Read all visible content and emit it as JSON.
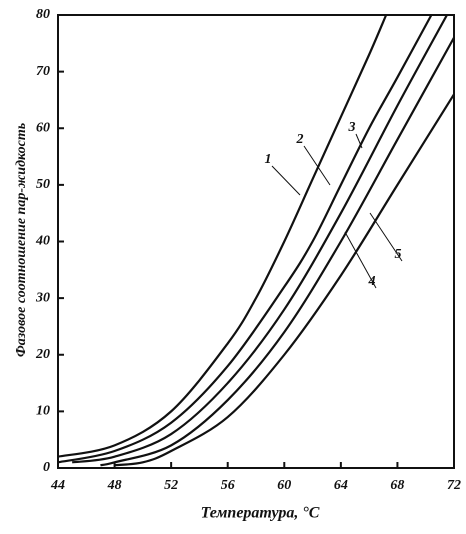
{
  "chart_data": {
    "type": "line",
    "x_label": "Температура, °С",
    "y_label": "Фазовое соотношение пар-жидкость",
    "xlim": [
      44,
      72
    ],
    "xticks": [
      44,
      48,
      52,
      56,
      60,
      64,
      68,
      72
    ],
    "ylim": [
      0,
      80
    ],
    "yticks": [
      0,
      10,
      20,
      30,
      40,
      50,
      60,
      70,
      80
    ],
    "series": [
      {
        "name": "1",
        "color": "#111111",
        "x": [
          44,
          48,
          52,
          56,
          58,
          60,
          62,
          64,
          66,
          67.2
        ],
        "values": [
          2,
          4,
          10,
          22,
          30,
          40,
          51,
          62,
          73,
          80
        ]
      },
      {
        "name": "2",
        "color": "#111111",
        "x": [
          44,
          48,
          52,
          56,
          60,
          62,
          64,
          66,
          68,
          70.4
        ],
        "values": [
          1,
          3,
          8,
          18,
          32,
          40,
          50,
          60,
          69,
          80
        ]
      },
      {
        "name": "3",
        "color": "#111111",
        "x": [
          45,
          48,
          52,
          56,
          60,
          64,
          68,
          71.5
        ],
        "values": [
          1,
          2,
          6,
          15,
          28,
          45,
          64,
          80
        ]
      },
      {
        "name": "4",
        "color": "#111111",
        "x": [
          47,
          48,
          52,
          56,
          60,
          64,
          68,
          72
        ],
        "values": [
          0.5,
          1,
          4,
          12,
          24,
          40,
          58,
          76
        ]
      },
      {
        "name": "5",
        "color": "#111111",
        "x": [
          48,
          50,
          52,
          56,
          60,
          64,
          68,
          72
        ],
        "values": [
          0.5,
          1,
          3,
          9,
          20,
          34,
          50,
          66
        ]
      }
    ]
  }
}
